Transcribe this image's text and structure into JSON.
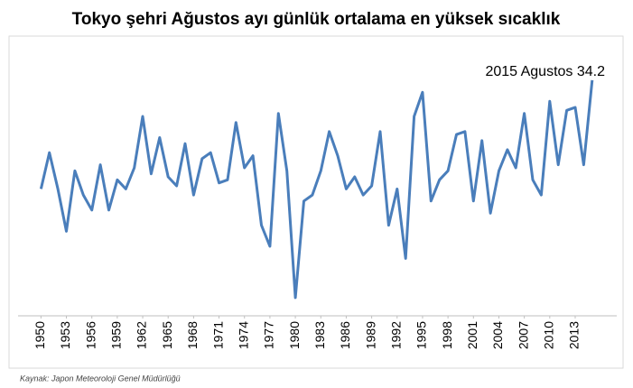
{
  "chart_data": {
    "type": "line",
    "title": "Tokyo şehri Ağustos ayı günlük ortalama en yüksek sıcaklık",
    "annotation": "2015 Agustos 34.2",
    "source": "Kaynak: Japon Meteoroloji Genel Müdürlüğü",
    "x": [
      1950,
      1951,
      1952,
      1953,
      1954,
      1955,
      1956,
      1957,
      1958,
      1959,
      1960,
      1961,
      1962,
      1963,
      1964,
      1965,
      1966,
      1967,
      1968,
      1969,
      1970,
      1971,
      1972,
      1973,
      1974,
      1975,
      1976,
      1977,
      1978,
      1979,
      1980,
      1981,
      1982,
      1983,
      1984,
      1985,
      1986,
      1987,
      1988,
      1989,
      1990,
      1991,
      1992,
      1993,
      1994,
      1995,
      1996,
      1997,
      1998,
      1999,
      2000,
      2001,
      2002,
      2003,
      2004,
      2005,
      2006,
      2007,
      2008,
      2009,
      2010,
      2011,
      2012,
      2013,
      2014,
      2015
    ],
    "series": [
      {
        "color": "#4a7ebb",
        "values": [
          30.6,
          31.8,
          30.6,
          29.2,
          31.2,
          30.4,
          29.9,
          31.4,
          29.9,
          30.9,
          30.6,
          31.3,
          33.0,
          31.1,
          32.3,
          31.0,
          30.7,
          32.1,
          30.4,
          31.6,
          31.8,
          30.8,
          30.9,
          32.8,
          31.3,
          31.7,
          29.4,
          28.7,
          33.1,
          31.2,
          27.0,
          30.2,
          30.4,
          31.2,
          32.5,
          31.7,
          30.6,
          31.0,
          30.4,
          30.7,
          32.5,
          29.4,
          30.6,
          28.3,
          33.0,
          33.8,
          30.2,
          30.9,
          31.2,
          32.4,
          32.5,
          30.2,
          32.2,
          29.8,
          31.2,
          31.9,
          31.3,
          33.1,
          30.9,
          30.4,
          33.5,
          31.4,
          33.2,
          33.3,
          31.4,
          34.2
        ]
      }
    ],
    "xlim": [
      1947.3,
      2017.9
    ],
    "xticks": [
      1950,
      1953,
      1956,
      1959,
      1962,
      1965,
      1968,
      1971,
      1974,
      1977,
      1980,
      1983,
      1986,
      1989,
      1992,
      1995,
      1998,
      2001,
      2004,
      2007,
      2010,
      2013
    ],
    "ylim": [
      26.4,
      35.6
    ]
  }
}
